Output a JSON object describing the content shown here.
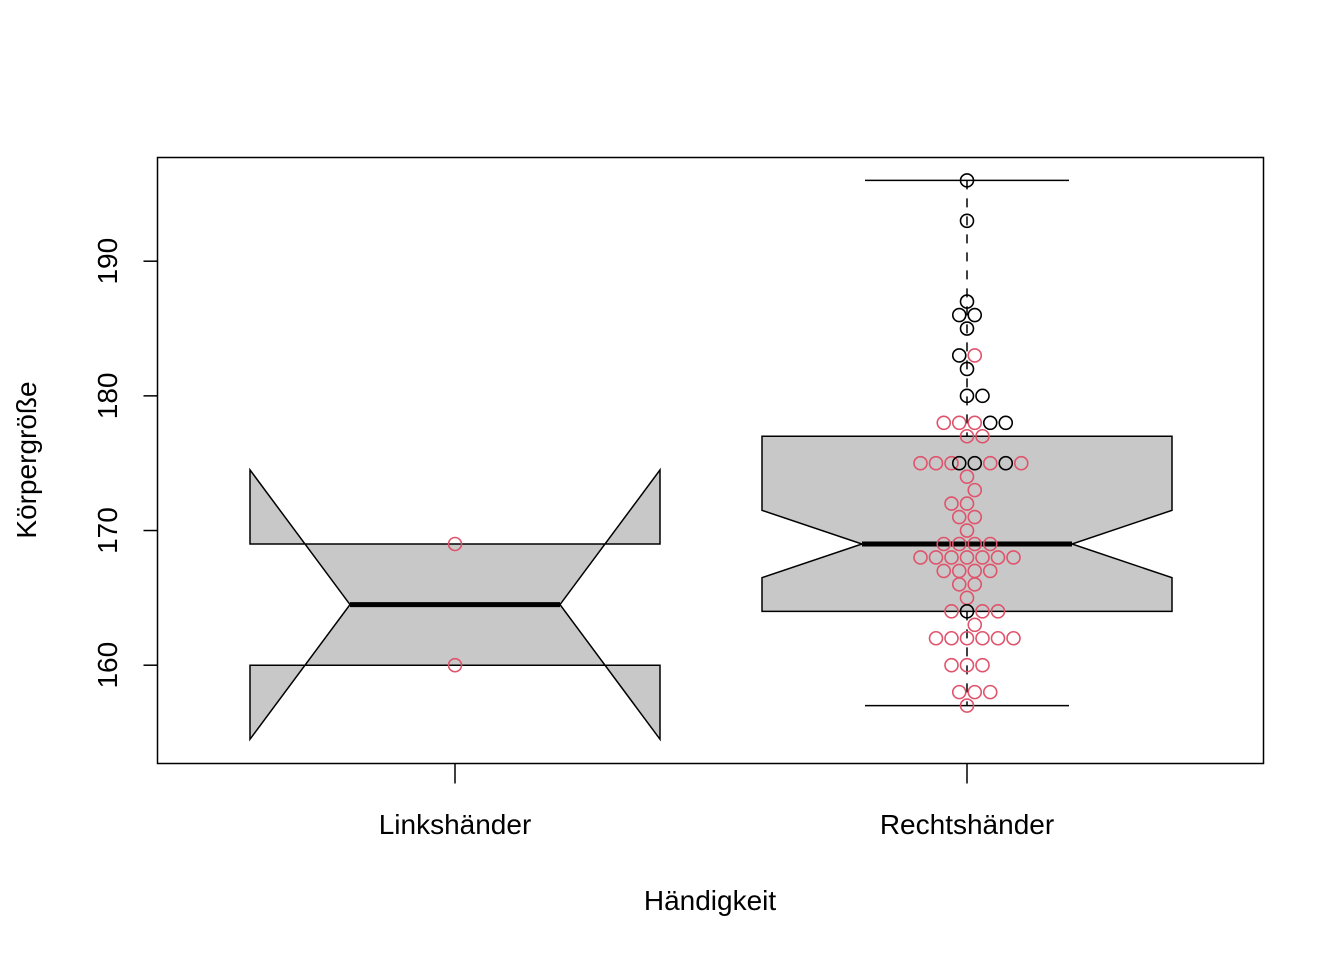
{
  "chart_data": {
    "type": "boxplot",
    "title": "",
    "xlabel": "Händigkeit",
    "ylabel": "Körpergröße",
    "ylim": [
      152.7,
      197.7
    ],
    "yticks": [
      160,
      170,
      180,
      190
    ],
    "categories": [
      "Linkshänder",
      "Rechtshänder"
    ],
    "notched": true,
    "box_fill": "#c8c8c8",
    "groups": [
      {
        "category": "Linkshänder",
        "whisker_low": 160,
        "q1": 160,
        "median": 164.5,
        "q3": 169,
        "whisker_high": 169,
        "notch_low": 154.5,
        "notch_high": 174.5
      },
      {
        "category": "Rechtshänder",
        "whisker_low": 157,
        "q1": 164,
        "median": 169,
        "q3": 177,
        "whisker_high": 196,
        "notch_low": 166.5,
        "notch_high": 171.5
      }
    ],
    "point_colors": {
      "red": "#df536b",
      "black": "#000000"
    },
    "points": [
      {
        "g": 1,
        "y": 169,
        "dx": 0,
        "c": "red"
      },
      {
        "g": 1,
        "y": 160,
        "dx": 0,
        "c": "red"
      },
      {
        "g": 2,
        "y": 196,
        "dx": 0,
        "c": "black"
      },
      {
        "g": 2,
        "y": 193,
        "dx": 0,
        "c": "black"
      },
      {
        "g": 2,
        "y": 187,
        "dx": 0,
        "c": "black"
      },
      {
        "g": 2,
        "y": 186,
        "dx": -0.5,
        "c": "black"
      },
      {
        "g": 2,
        "y": 186,
        "dx": 0.5,
        "c": "black"
      },
      {
        "g": 2,
        "y": 185,
        "dx": 0,
        "c": "black"
      },
      {
        "g": 2,
        "y": 183,
        "dx": -0.5,
        "c": "black"
      },
      {
        "g": 2,
        "y": 183,
        "dx": 0.5,
        "c": "red"
      },
      {
        "g": 2,
        "y": 182,
        "dx": 0,
        "c": "black"
      },
      {
        "g": 2,
        "y": 180,
        "dx": 0,
        "c": "black"
      },
      {
        "g": 2,
        "y": 180,
        "dx": 1,
        "c": "black"
      },
      {
        "g": 2,
        "y": 178,
        "dx": -1.5,
        "c": "red"
      },
      {
        "g": 2,
        "y": 178,
        "dx": -0.5,
        "c": "red"
      },
      {
        "g": 2,
        "y": 178,
        "dx": 0.5,
        "c": "red"
      },
      {
        "g": 2,
        "y": 178,
        "dx": 1.5,
        "c": "black"
      },
      {
        "g": 2,
        "y": 178,
        "dx": 2.5,
        "c": "black"
      },
      {
        "g": 2,
        "y": 177,
        "dx": 0,
        "c": "red"
      },
      {
        "g": 2,
        "y": 177,
        "dx": 1,
        "c": "red"
      },
      {
        "g": 2,
        "y": 175,
        "dx": -3,
        "c": "red"
      },
      {
        "g": 2,
        "y": 175,
        "dx": -2,
        "c": "red"
      },
      {
        "g": 2,
        "y": 175,
        "dx": -1,
        "c": "red"
      },
      {
        "g": 2,
        "y": 175,
        "dx": -0.5,
        "c": "black"
      },
      {
        "g": 2,
        "y": 175,
        "dx": 0.5,
        "c": "black"
      },
      {
        "g": 2,
        "y": 175,
        "dx": 1.5,
        "c": "red"
      },
      {
        "g": 2,
        "y": 175,
        "dx": 2.5,
        "c": "black"
      },
      {
        "g": 2,
        "y": 175,
        "dx": 3.5,
        "c": "red"
      },
      {
        "g": 2,
        "y": 174,
        "dx": 0,
        "c": "red"
      },
      {
        "g": 2,
        "y": 173,
        "dx": 0.5,
        "c": "red"
      },
      {
        "g": 2,
        "y": 172,
        "dx": -1,
        "c": "red"
      },
      {
        "g": 2,
        "y": 172,
        "dx": 0,
        "c": "red"
      },
      {
        "g": 2,
        "y": 171,
        "dx": -0.5,
        "c": "red"
      },
      {
        "g": 2,
        "y": 171,
        "dx": 0.5,
        "c": "red"
      },
      {
        "g": 2,
        "y": 170,
        "dx": 0,
        "c": "red"
      },
      {
        "g": 2,
        "y": 169,
        "dx": -1.5,
        "c": "red"
      },
      {
        "g": 2,
        "y": 169,
        "dx": -0.5,
        "c": "red"
      },
      {
        "g": 2,
        "y": 169,
        "dx": 0.5,
        "c": "red"
      },
      {
        "g": 2,
        "y": 169,
        "dx": 1.5,
        "c": "red"
      },
      {
        "g": 2,
        "y": 168,
        "dx": -3,
        "c": "red"
      },
      {
        "g": 2,
        "y": 168,
        "dx": -2,
        "c": "red"
      },
      {
        "g": 2,
        "y": 168,
        "dx": -1,
        "c": "red"
      },
      {
        "g": 2,
        "y": 168,
        "dx": 0,
        "c": "red"
      },
      {
        "g": 2,
        "y": 168,
        "dx": 1,
        "c": "red"
      },
      {
        "g": 2,
        "y": 168,
        "dx": 2,
        "c": "red"
      },
      {
        "g": 2,
        "y": 168,
        "dx": 3,
        "c": "red"
      },
      {
        "g": 2,
        "y": 167,
        "dx": -1.5,
        "c": "red"
      },
      {
        "g": 2,
        "y": 167,
        "dx": -0.5,
        "c": "red"
      },
      {
        "g": 2,
        "y": 167,
        "dx": 0.5,
        "c": "red"
      },
      {
        "g": 2,
        "y": 167,
        "dx": 1.5,
        "c": "red"
      },
      {
        "g": 2,
        "y": 166,
        "dx": -0.5,
        "c": "red"
      },
      {
        "g": 2,
        "y": 166,
        "dx": 0.5,
        "c": "red"
      },
      {
        "g": 2,
        "y": 165,
        "dx": 0,
        "c": "red"
      },
      {
        "g": 2,
        "y": 164,
        "dx": -1,
        "c": "red"
      },
      {
        "g": 2,
        "y": 164,
        "dx": 0,
        "c": "black"
      },
      {
        "g": 2,
        "y": 164,
        "dx": 1,
        "c": "red"
      },
      {
        "g": 2,
        "y": 164,
        "dx": 2,
        "c": "red"
      },
      {
        "g": 2,
        "y": 163,
        "dx": 0.5,
        "c": "red"
      },
      {
        "g": 2,
        "y": 162,
        "dx": -2,
        "c": "red"
      },
      {
        "g": 2,
        "y": 162,
        "dx": -1,
        "c": "red"
      },
      {
        "g": 2,
        "y": 162,
        "dx": 0,
        "c": "red"
      },
      {
        "g": 2,
        "y": 162,
        "dx": 1,
        "c": "red"
      },
      {
        "g": 2,
        "y": 162,
        "dx": 2,
        "c": "red"
      },
      {
        "g": 2,
        "y": 162,
        "dx": 3,
        "c": "red"
      },
      {
        "g": 2,
        "y": 160,
        "dx": -1,
        "c": "red"
      },
      {
        "g": 2,
        "y": 160,
        "dx": 0,
        "c": "red"
      },
      {
        "g": 2,
        "y": 160,
        "dx": 1,
        "c": "red"
      },
      {
        "g": 2,
        "y": 158,
        "dx": -0.5,
        "c": "red"
      },
      {
        "g": 2,
        "y": 158,
        "dx": 0.5,
        "c": "red"
      },
      {
        "g": 2,
        "y": 158,
        "dx": 1.5,
        "c": "red"
      },
      {
        "g": 2,
        "y": 157,
        "dx": 0,
        "c": "red"
      }
    ]
  }
}
